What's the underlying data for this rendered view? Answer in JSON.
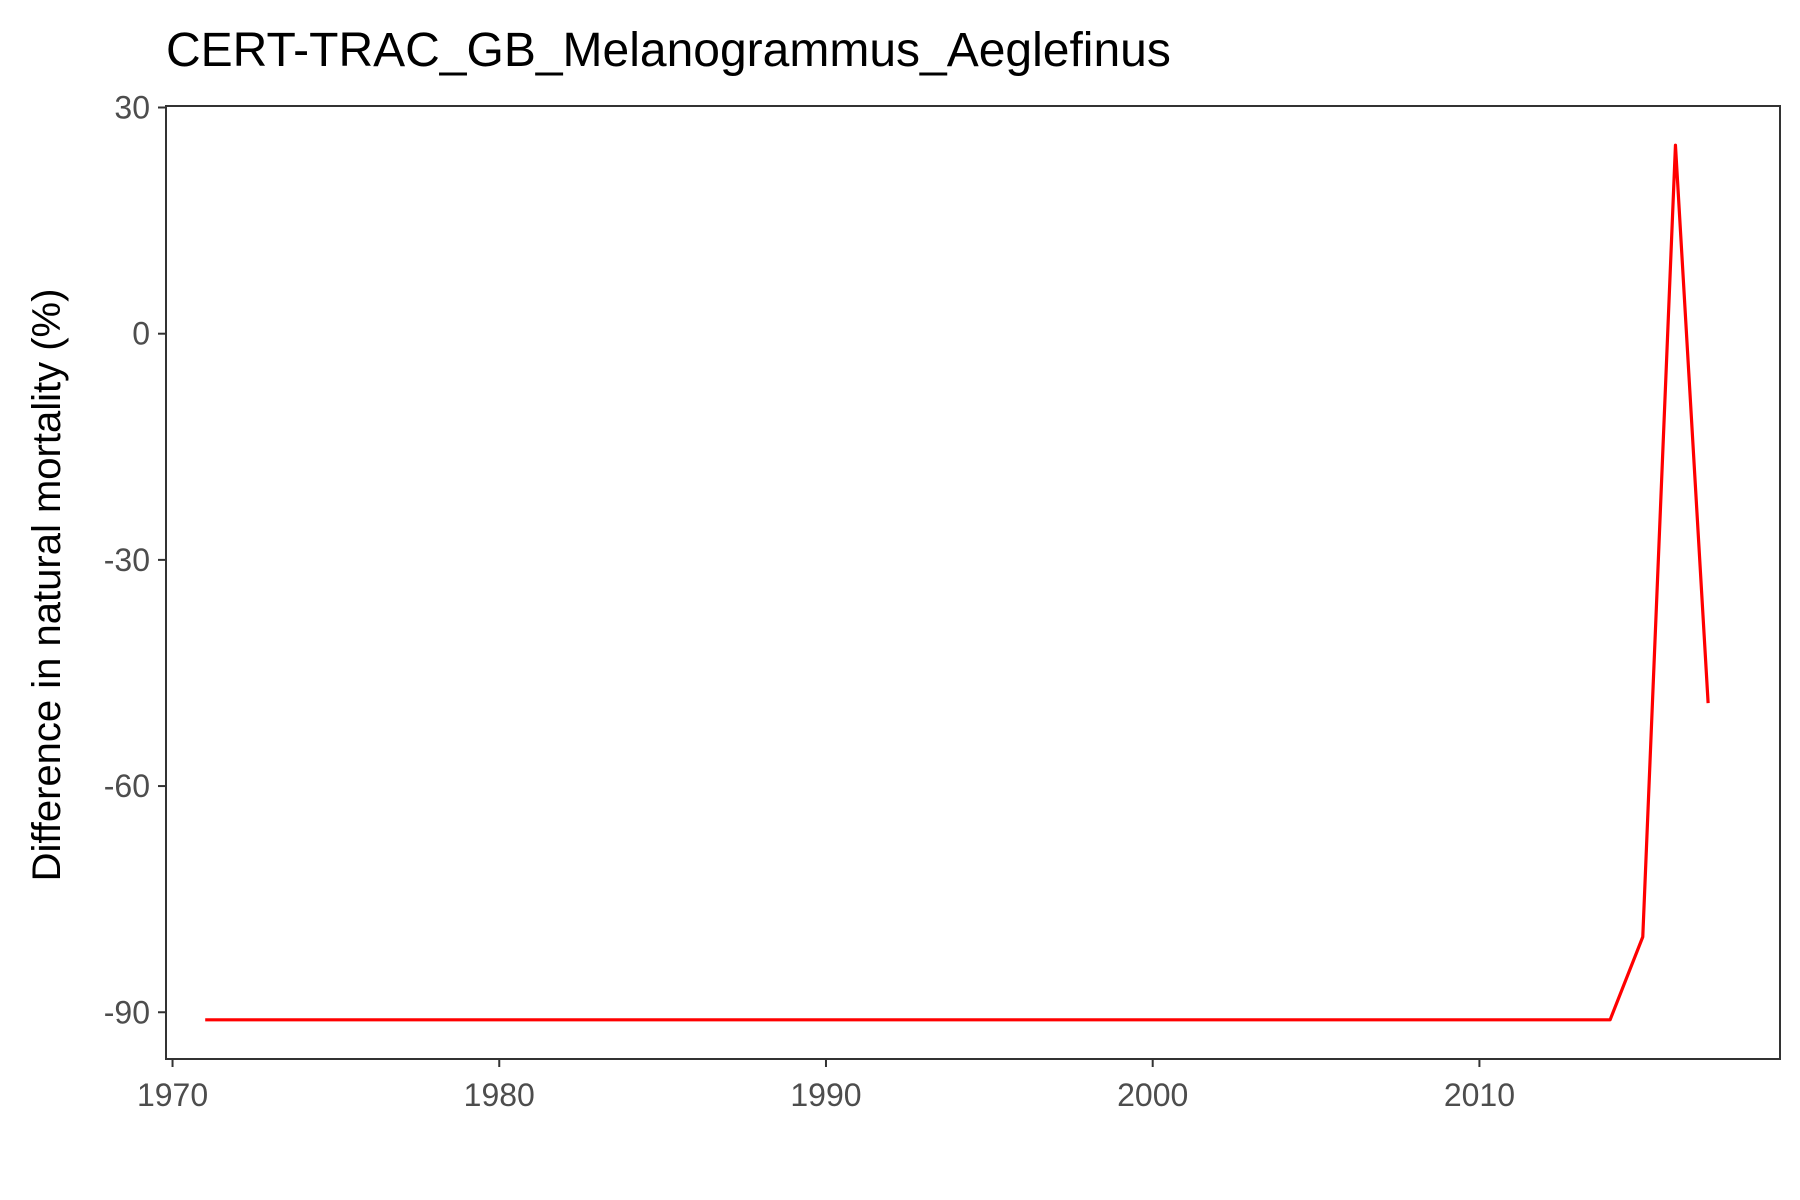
{
  "chart_data": {
    "type": "line",
    "title": "CERT-TRAC_GB_Melanogrammus_Aeglefinus",
    "xlabel": "",
    "ylabel": "Difference in natural mortality (%)",
    "xlim": [
      1969.8,
      2019.2
    ],
    "ylim": [
      -96.2,
      30.2
    ],
    "x_ticks": [
      1970,
      1980,
      1990,
      2000,
      2010
    ],
    "y_ticks": [
      30,
      0,
      -30,
      -60,
      -90
    ],
    "grid": false,
    "legend": "none",
    "series": [
      {
        "color": "#ff0000",
        "x": [
          1971,
          1972,
          1973,
          1974,
          1975,
          1976,
          1977,
          1978,
          1979,
          1980,
          1981,
          1982,
          1983,
          1984,
          1985,
          1986,
          1987,
          1988,
          1989,
          1990,
          1991,
          1992,
          1993,
          1994,
          1995,
          1996,
          1997,
          1998,
          1999,
          2000,
          2001,
          2002,
          2003,
          2004,
          2005,
          2006,
          2007,
          2008,
          2009,
          2010,
          2011,
          2012,
          2013,
          2014,
          2015,
          2016,
          2017
        ],
        "y": [
          -91,
          -91,
          -91,
          -91,
          -91,
          -91,
          -91,
          -91,
          -91,
          -91,
          -91,
          -91,
          -91,
          -91,
          -91,
          -91,
          -91,
          -91,
          -91,
          -91,
          -91,
          -91,
          -91,
          -91,
          -91,
          -91,
          -91,
          -91,
          -91,
          -91,
          -91,
          -91,
          -91,
          -91,
          -91,
          -91,
          -91,
          -91,
          -91,
          -91,
          -91,
          -91,
          -91,
          -91,
          -80,
          25,
          -49
        ]
      }
    ]
  }
}
